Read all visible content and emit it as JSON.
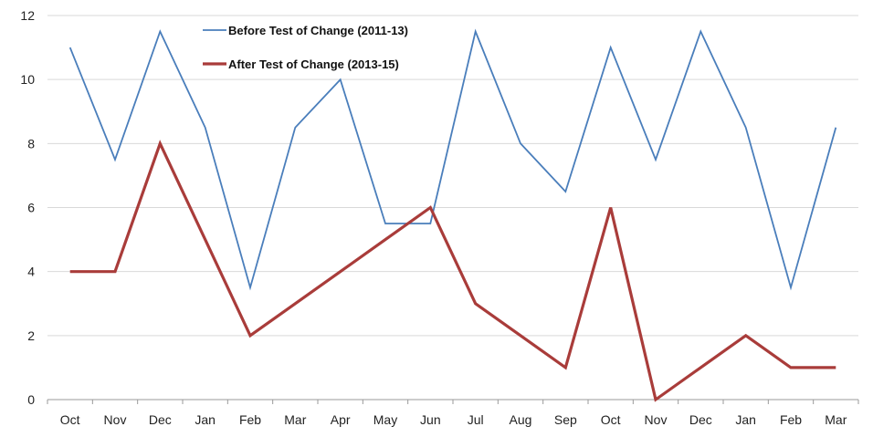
{
  "chart_data": {
    "type": "line",
    "title": "",
    "xlabel": "",
    "ylabel": "",
    "ylim": [
      0,
      12
    ],
    "yticks": [
      0,
      2,
      4,
      6,
      8,
      10,
      12
    ],
    "grid": true,
    "legend_position": "top-center",
    "categories": [
      "Oct",
      "Nov",
      "Dec",
      "Jan",
      "Feb",
      "Mar",
      "Apr",
      "May",
      "Jun",
      "Jul",
      "Aug",
      "Sep",
      "Oct",
      "Nov",
      "Dec",
      "Jan",
      "Feb",
      "Mar"
    ],
    "series": [
      {
        "name": "Before Test of Change (2011-13)",
        "color": "#4a7ebb",
        "values": [
          11,
          7.5,
          11.5,
          8.5,
          3.5,
          8.5,
          10,
          5.5,
          5.5,
          11.5,
          8,
          6.5,
          11,
          7.5,
          11.5,
          8.5,
          3.5,
          8.5
        ]
      },
      {
        "name": "After Test of Change (2013-15)",
        "color": "#a93c3a",
        "values": [
          4,
          4,
          8,
          5,
          2,
          3,
          4,
          5,
          6,
          3,
          2,
          1,
          6,
          0,
          1,
          2,
          1,
          1
        ]
      }
    ]
  }
}
